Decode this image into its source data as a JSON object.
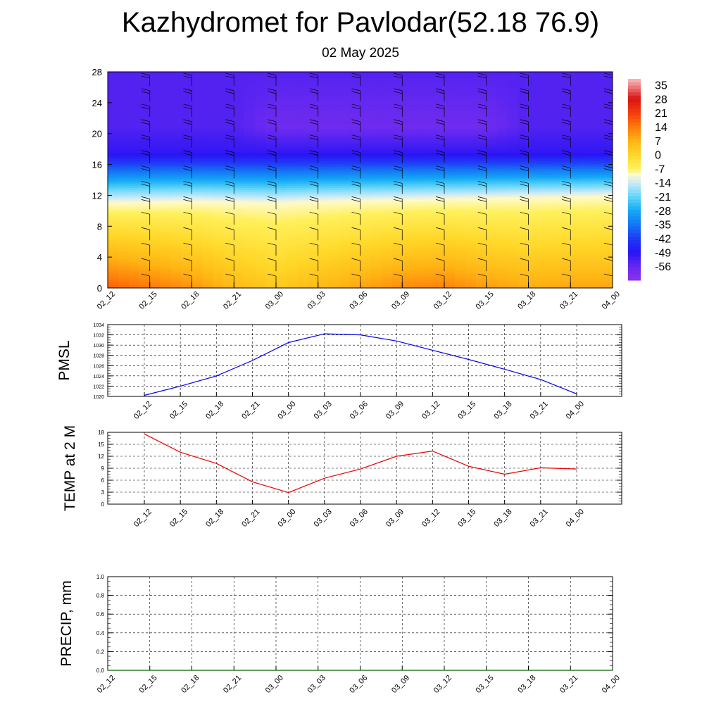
{
  "title": "Kazhydromet for Pavlodar(52.18 76.9)",
  "subtitle": "02 May 2025",
  "time_labels": [
    "02_12",
    "02_15",
    "02_18",
    "02_21",
    "03_00",
    "03_03",
    "03_06",
    "03_09",
    "03_12",
    "03_15",
    "03_18",
    "03_21",
    "04_00"
  ],
  "chart_data": [
    {
      "type": "heatmap",
      "title": "",
      "xlabel": "",
      "ylabel": "",
      "x": [
        "02_12",
        "02_15",
        "02_18",
        "02_21",
        "03_00",
        "03_03",
        "03_06",
        "03_09",
        "03_12",
        "03_15",
        "03_18",
        "03_21",
        "04_00"
      ],
      "ylim": [
        0,
        28
      ],
      "y_ticks": [
        0,
        4,
        8,
        12,
        16,
        20,
        24,
        28
      ],
      "colorbar_labels": [
        "35",
        "28",
        "21",
        "14",
        "7",
        "0",
        "-7",
        "-14",
        "-21",
        "-28",
        "-35",
        "-42",
        "-49",
        "-56"
      ],
      "colorbar_range": [
        -63,
        38
      ],
      "freezing_level_approx": [
        11.0,
        11.1,
        11.2,
        11.1,
        11.0,
        11.2,
        11.3,
        11.4,
        11.5,
        11.6,
        11.7,
        11.8,
        11.9
      ],
      "surface_temp_approx": [
        17,
        14,
        11,
        6,
        3,
        6,
        9,
        12,
        13,
        10,
        8,
        9,
        9
      ],
      "overlay": "wind barbs",
      "colors": {
        "warm": "#ff3000",
        "cold": "#1010f0",
        "coldest": "#8040f0"
      }
    },
    {
      "type": "line",
      "ylabel": "PMSL",
      "x": [
        "02_12",
        "02_15",
        "02_18",
        "02_21",
        "03_00",
        "03_03",
        "03_06",
        "03_09",
        "03_12",
        "03_15",
        "03_18",
        "03_21",
        "04_00"
      ],
      "series": [
        {
          "values": [
            1020.2,
            1022.0,
            1024.0,
            1027.0,
            1030.5,
            1032.2,
            1032.0,
            1030.8,
            1029.0,
            1027.2,
            1025.3,
            1023.3,
            1020.5
          ],
          "color": "#0000ee"
        }
      ],
      "ylim": [
        1020,
        1034
      ],
      "y_ticks": [
        1020,
        1022,
        1024,
        1026,
        1028,
        1030,
        1032,
        1034
      ],
      "grid": true
    },
    {
      "type": "line",
      "ylabel": "TEMP at 2 M",
      "x": [
        "02_12",
        "02_15",
        "02_18",
        "02_21",
        "03_00",
        "03_03",
        "03_06",
        "03_09",
        "03_12",
        "03_15",
        "03_18",
        "03_21",
        "04_00"
      ],
      "series": [
        {
          "values": [
            17.6,
            13.0,
            10.2,
            5.6,
            2.9,
            6.5,
            8.8,
            12.0,
            13.3,
            9.5,
            7.5,
            9.1,
            8.8
          ],
          "color": "#ee0000"
        }
      ],
      "ylim": [
        0,
        18
      ],
      "y_ticks": [
        0,
        3,
        6,
        9,
        12,
        15,
        18
      ],
      "grid": true
    },
    {
      "type": "line",
      "ylabel": "PRECIP, mm",
      "x": [
        "02_12",
        "02_15",
        "02_18",
        "02_21",
        "03_00",
        "03_03",
        "03_06",
        "03_09",
        "03_12",
        "03_15",
        "03_18",
        "03_21",
        "04_00"
      ],
      "series": [
        {
          "values": [
            0,
            0,
            0,
            0,
            0,
            0,
            0,
            0,
            0,
            0,
            0,
            0,
            0
          ],
          "color": "#006400"
        }
      ],
      "ylim": [
        0,
        1
      ],
      "y_ticks": [
        "0.0",
        "0.2",
        "0.4",
        "0.6",
        "0.8",
        "1.0"
      ],
      "grid": true
    }
  ]
}
